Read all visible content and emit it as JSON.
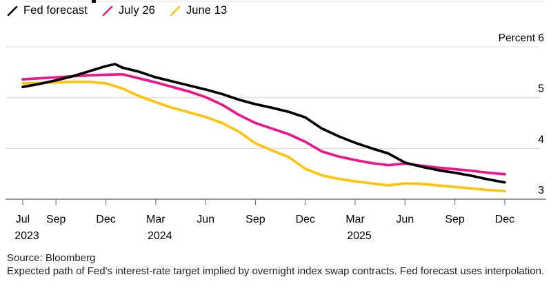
{
  "legend": [
    {
      "label": "Fed forecast",
      "color": "#000000"
    },
    {
      "label": "July 26",
      "color": "#f0148c"
    },
    {
      "label": "June 13",
      "color": "#ffc30a"
    }
  ],
  "footer": {
    "source": "Source: Bloomberg",
    "note": "Expected path of Fed's interest-rate target implied by overnight index swap contracts. Fed forecast uses interpolation."
  },
  "chart_data": {
    "type": "line",
    "title": "",
    "xlabel": "",
    "ylabel": "Percent",
    "ylim": [
      3,
      6
    ],
    "grid": "horizontal",
    "legend_position": "top-left",
    "y_axis": {
      "side": "right",
      "gridlines": [
        6,
        5,
        4,
        3
      ],
      "labels": {
        "6": "Percent 6",
        "5": "5",
        "4": "4",
        "3": "3"
      }
    },
    "x_axis": {
      "unit": "months from Jul 2023",
      "ticks": [
        {
          "m": 0,
          "label": "Jul",
          "year": "2023"
        },
        {
          "m": 2,
          "label": "Sep"
        },
        {
          "m": 5,
          "label": "Dec"
        },
        {
          "m": 8,
          "label": "Mar",
          "year": "2024"
        },
        {
          "m": 11,
          "label": "Jun"
        },
        {
          "m": 14,
          "label": "Sep"
        },
        {
          "m": 17,
          "label": "Dec"
        },
        {
          "m": 20,
          "label": "Mar",
          "year": "2025"
        },
        {
          "m": 23,
          "label": "Jun"
        },
        {
          "m": 26,
          "label": "Sep"
        },
        {
          "m": 29,
          "label": "Dec"
        }
      ]
    },
    "series": [
      {
        "name": "Fed forecast",
        "color": "#000000",
        "x": [
          0,
          1,
          2,
          3,
          4,
          5,
          5.55,
          6,
          7,
          8,
          9,
          10,
          11,
          12,
          13,
          14,
          15,
          16,
          17,
          18,
          19,
          20,
          21,
          22,
          23,
          24,
          25,
          26,
          27,
          28,
          29
        ],
        "values": [
          5.21,
          5.27,
          5.34,
          5.42,
          5.52,
          5.62,
          5.66,
          5.59,
          5.51,
          5.4,
          5.32,
          5.24,
          5.16,
          5.07,
          4.96,
          4.87,
          4.8,
          4.72,
          4.61,
          4.39,
          4.24,
          4.11,
          4.0,
          3.9,
          3.72,
          3.64,
          3.57,
          3.52,
          3.46,
          3.39,
          3.33
        ]
      },
      {
        "name": "July 26",
        "color": "#f0148c",
        "x": [
          0,
          1,
          2,
          3,
          4,
          5,
          6,
          7,
          8,
          9,
          10,
          11,
          12,
          13,
          14,
          15,
          16,
          17,
          18,
          19,
          20,
          21,
          22,
          23,
          24,
          25,
          26,
          27,
          28,
          29
        ],
        "values": [
          5.36,
          5.38,
          5.4,
          5.42,
          5.44,
          5.45,
          5.46,
          5.38,
          5.3,
          5.21,
          5.12,
          5.01,
          4.86,
          4.66,
          4.5,
          4.39,
          4.28,
          4.13,
          3.94,
          3.84,
          3.77,
          3.71,
          3.67,
          3.7,
          3.66,
          3.62,
          3.59,
          3.56,
          3.52,
          3.49
        ]
      },
      {
        "name": "June 13",
        "color": "#ffc30a",
        "x": [
          0,
          1,
          2,
          3,
          4,
          5,
          6,
          7,
          8,
          9,
          10,
          11,
          12,
          13,
          14,
          15,
          16,
          17,
          18,
          19,
          20,
          21,
          22,
          23,
          24,
          25,
          26,
          27,
          28,
          29
        ],
        "values": [
          5.28,
          5.29,
          5.3,
          5.31,
          5.31,
          5.28,
          5.18,
          5.03,
          4.91,
          4.8,
          4.71,
          4.62,
          4.5,
          4.33,
          4.1,
          3.96,
          3.83,
          3.6,
          3.47,
          3.4,
          3.35,
          3.31,
          3.27,
          3.31,
          3.3,
          3.27,
          3.24,
          3.21,
          3.18,
          3.16
        ]
      }
    ]
  }
}
